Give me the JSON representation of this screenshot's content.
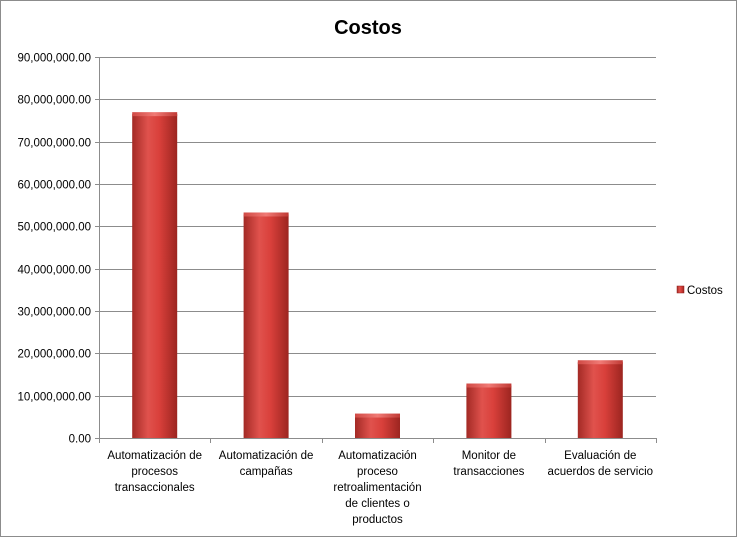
{
  "chart_data": {
    "type": "bar",
    "title": "Costos",
    "categories": [
      "Automatización de procesos transaccionales",
      "Automatización de campañas",
      "Automatización proceso retroalimentación de clientes o productos",
      "Monitor de transacciones",
      "Evaluación de acuerdos de servicio"
    ],
    "category_lines": [
      [
        "Automatización de",
        "procesos",
        "transaccionales"
      ],
      [
        "Automatización de",
        "campañas"
      ],
      [
        "Automatización",
        "proceso",
        "retroalimentación",
        "de clientes o",
        "productos"
      ],
      [
        "Monitor de",
        "transacciones"
      ],
      [
        "Evaluación de",
        "acuerdos de servicio"
      ]
    ],
    "series": [
      {
        "name": "Costos",
        "values": [
          76500000,
          52800000,
          5300000,
          12400000,
          17900000
        ]
      }
    ],
    "ylim": [
      0,
      90000000
    ],
    "yticks": [
      0,
      10000000,
      20000000,
      30000000,
      40000000,
      50000000,
      60000000,
      70000000,
      80000000,
      90000000
    ],
    "ytick_labels": [
      "0.00",
      "10,000,000.00",
      "20,000,000.00",
      "30,000,000.00",
      "40,000,000.00",
      "50,000,000.00",
      "60,000,000.00",
      "70,000,000.00",
      "80,000,000.00",
      "90,000,000.00"
    ],
    "xlabel": "",
    "ylabel": "",
    "grid": true,
    "legend_position": "right",
    "colors": {
      "bar": "#c0392b",
      "bar_light": "#e05a55",
      "bar_dark": "#8e1f1a",
      "grid": "#8c8c8c"
    }
  }
}
